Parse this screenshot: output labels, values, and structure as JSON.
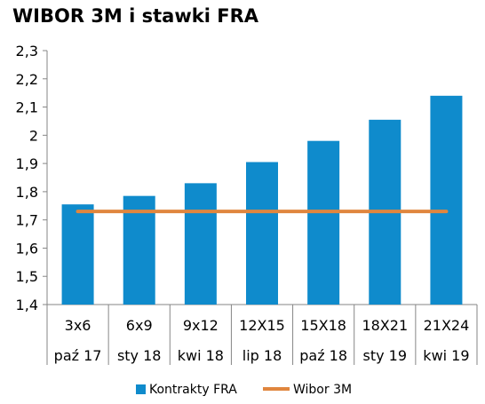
{
  "chart_data": {
    "type": "bar",
    "title": "WIBOR 3M i stawki FRA",
    "categories": [
      {
        "top": "3x6",
        "bottom": "paź 17"
      },
      {
        "top": "6x9",
        "bottom": "sty 18"
      },
      {
        "top": "9x12",
        "bottom": "kwi 18"
      },
      {
        "top": "12X15",
        "bottom": "lip 18"
      },
      {
        "top": "15X18",
        "bottom": "paź 18"
      },
      {
        "top": "18X21",
        "bottom": "sty 19"
      },
      {
        "top": "21X24",
        "bottom": "kwi 19"
      }
    ],
    "series": [
      {
        "name": "Kontrakty FRA",
        "type": "bar",
        "color": "#0f8bcc",
        "values": [
          1.755,
          1.785,
          1.83,
          1.905,
          1.98,
          2.055,
          2.14
        ]
      },
      {
        "name": "Wibor 3M",
        "type": "line",
        "color": "#e0863e",
        "values": [
          1.73,
          1.73,
          1.73,
          1.73,
          1.73,
          1.73,
          1.73
        ]
      }
    ],
    "ylim": [
      1.4,
      2.3
    ],
    "yticks": [
      "1,4",
      "1,5",
      "1,6",
      "1,7",
      "1,8",
      "1,9",
      "2",
      "2,1",
      "2,2",
      "2,3"
    ],
    "legend_position": "bottom",
    "grid": false
  }
}
